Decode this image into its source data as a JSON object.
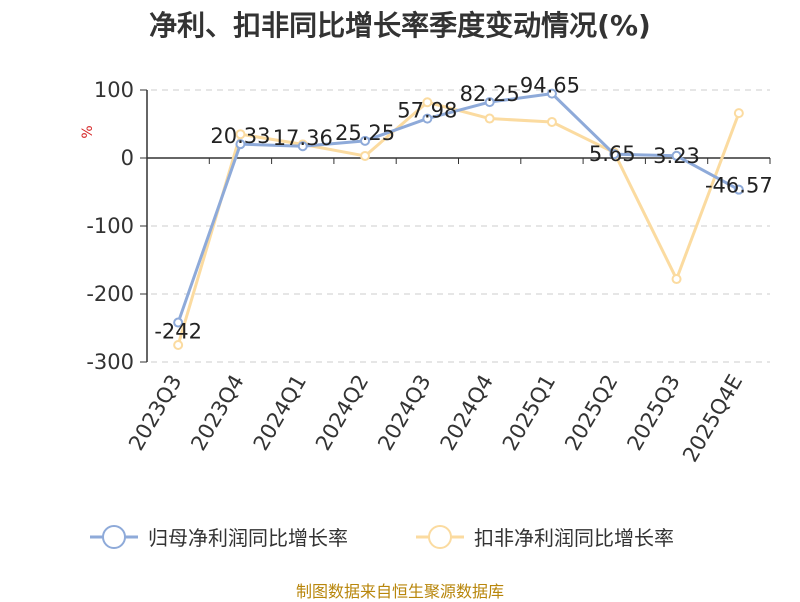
{
  "chart_data": {
    "type": "line",
    "title": "净利、扣非同比增长率季度变动情况(%)",
    "ylabel": "%",
    "categories": [
      "2023Q3",
      "2023Q4",
      "2024Q1",
      "2024Q2",
      "2024Q3",
      "2024Q4",
      "2025Q1",
      "2025Q2",
      "2025Q3",
      "2025Q4E"
    ],
    "ylim": [
      -300,
      100
    ],
    "yticks": [
      100,
      0,
      -100,
      -200,
      -300
    ],
    "grid": true,
    "legend_position": "bottom",
    "series": [
      {
        "name": "归母净利润同比增长率",
        "color": "#8eaad9",
        "values": [
          -242,
          20.33,
          17.36,
          25.25,
          57.98,
          82.25,
          94.65,
          5.65,
          3.23,
          -46.57
        ],
        "data_labels": [
          "-242",
          "20.33",
          "17.36",
          "25.25",
          "57.98",
          "82.25",
          "94.65",
          "5.65",
          "3.23",
          "-46.57"
        ]
      },
      {
        "name": "扣非净利润同比增长率",
        "color": "#fbdba0",
        "values": [
          -275,
          35,
          20,
          3,
          82,
          58,
          53,
          8,
          -178,
          66
        ]
      }
    ]
  },
  "source": "制图数据来自恒生聚源数据库"
}
